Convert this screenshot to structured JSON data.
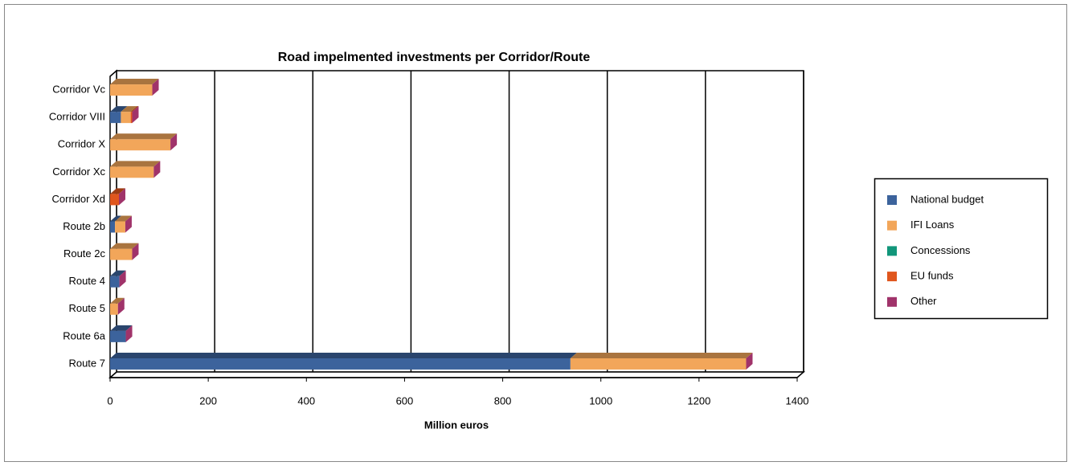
{
  "chart_data": {
    "type": "bar",
    "orientation": "horizontal",
    "stacked": true,
    "title": "Road impelmented investments per Corridor/Route",
    "x_label": "Million euros",
    "categories": [
      "Corridor Vc",
      "Corridor VIII",
      "Corridor X",
      "Corridor Xc",
      "Corridor Xd",
      "Route 2b",
      "Route 2c",
      "Route 4",
      "Route 5",
      "Route 6a",
      "Route 7"
    ],
    "series": [
      {
        "name": "National budget",
        "color": "#3c639c",
        "values": [
          0,
          22,
          0,
          0,
          0,
          10,
          0,
          19,
          0,
          32,
          938
        ]
      },
      {
        "name": "IFI Loans",
        "color": "#f2a65a",
        "values": [
          86,
          20,
          123,
          89,
          0,
          21,
          45,
          0,
          16,
          0,
          358
        ]
      },
      {
        "name": "Concessions",
        "color": "#11967a",
        "values": [
          0,
          0,
          0,
          0,
          0,
          0,
          0,
          0,
          0,
          0,
          0
        ]
      },
      {
        "name": "EU funds",
        "color": "#e0561d",
        "values": [
          0,
          3,
          0,
          0,
          18,
          0,
          0,
          0,
          0,
          0,
          0
        ]
      },
      {
        "name": "Other",
        "color": "#a0336a",
        "values": [
          0,
          0,
          0,
          0,
          0,
          0,
          0,
          0,
          0,
          0,
          0
        ]
      }
    ],
    "xlim": [
      0,
      1400
    ],
    "xticks": [
      0,
      200,
      400,
      600,
      800,
      1000,
      1200,
      1400
    ],
    "grid": true,
    "legend": "right"
  }
}
